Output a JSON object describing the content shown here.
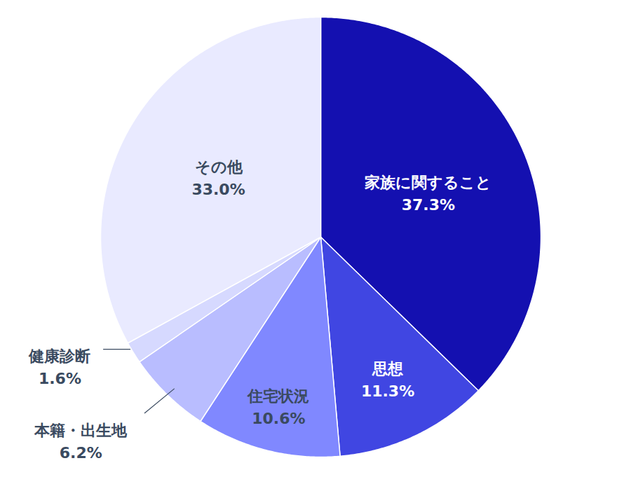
{
  "chart_data": {
    "type": "pie",
    "categories": [
      "家族に関すること",
      "思想",
      "住宅状況",
      "本籍・出生地",
      "健康診断",
      "その他"
    ],
    "values": [
      37.3,
      11.3,
      10.6,
      6.2,
      1.6,
      33.0
    ],
    "value_labels": [
      "37.3%",
      "11.3%",
      "10.6%",
      "6.2%",
      "1.6%",
      "33.0%"
    ],
    "colors": [
      "#1410b0",
      "#4046e2",
      "#8088ff",
      "#b9bdff",
      "#d6d9ff",
      "#e9eaff"
    ],
    "data_labels": true
  }
}
